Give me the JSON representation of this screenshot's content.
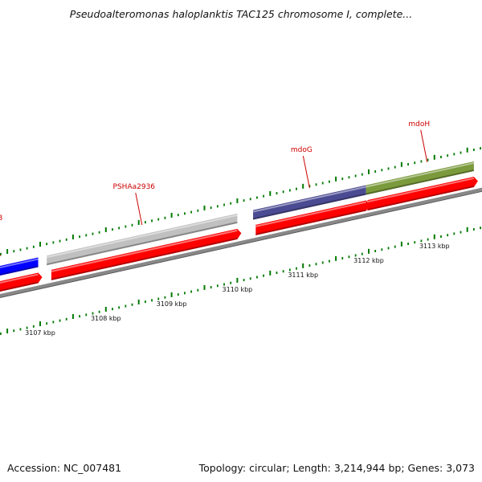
{
  "title": "Pseudoalteromonas haloplanktis TAC125 chromosome I, complete...",
  "footer": {
    "accession": "Accession: NC_007481",
    "summary": "Topology: circular; Length: 3,214,944 bp; Genes: 3,073"
  },
  "colors": {
    "cds": "#ff0000",
    "hemB": "#0000ff",
    "PSHAa2936": "#c0c0c0",
    "mdoG": "#4b4b93",
    "mdoH": "#7a9a3c",
    "backbone": "#888888",
    "ticks": "#007a00",
    "labels": "#cc0000"
  },
  "chart_data": {
    "type": "linear-genome-map",
    "axis_unit": "kbp",
    "axis_ticks": [
      {
        "kbp": 3107,
        "label": "3107 kbp"
      },
      {
        "kbp": 3108,
        "label": "3108 kbp"
      },
      {
        "kbp": 3109,
        "label": "3109 kbp"
      },
      {
        "kbp": 3110,
        "label": "3110 kbp"
      },
      {
        "kbp": 3111,
        "label": "3111 kbp"
      },
      {
        "kbp": 3112,
        "label": "3112 kbp"
      },
      {
        "kbp": 3113,
        "label": "3113 kbp"
      }
    ],
    "genes": [
      {
        "name": "hemB",
        "start_kbp": 3106.0,
        "end_kbp": 3106.97,
        "color_key": "hemB",
        "label": "hemB"
      },
      {
        "name": "PSHAa2936",
        "start_kbp": 3107.1,
        "end_kbp": 3110.0,
        "color_key": "PSHAa2936",
        "label": "PSHAa2936"
      },
      {
        "name": "mdoG",
        "start_kbp": 3110.24,
        "end_kbp": 3111.96,
        "color_key": "mdoG",
        "label": "mdoG"
      },
      {
        "name": "mdoH",
        "start_kbp": 3111.96,
        "end_kbp": 3113.6,
        "color_key": "mdoH",
        "label": "mdoH"
      }
    ],
    "cds": [
      {
        "start_kbp": 3106.0,
        "end_kbp": 3106.97
      },
      {
        "start_kbp": 3107.17,
        "end_kbp": 3110.0
      },
      {
        "start_kbp": 3110.28,
        "end_kbp": 3111.96
      },
      {
        "start_kbp": 3111.98,
        "end_kbp": 3113.6
      }
    ]
  }
}
